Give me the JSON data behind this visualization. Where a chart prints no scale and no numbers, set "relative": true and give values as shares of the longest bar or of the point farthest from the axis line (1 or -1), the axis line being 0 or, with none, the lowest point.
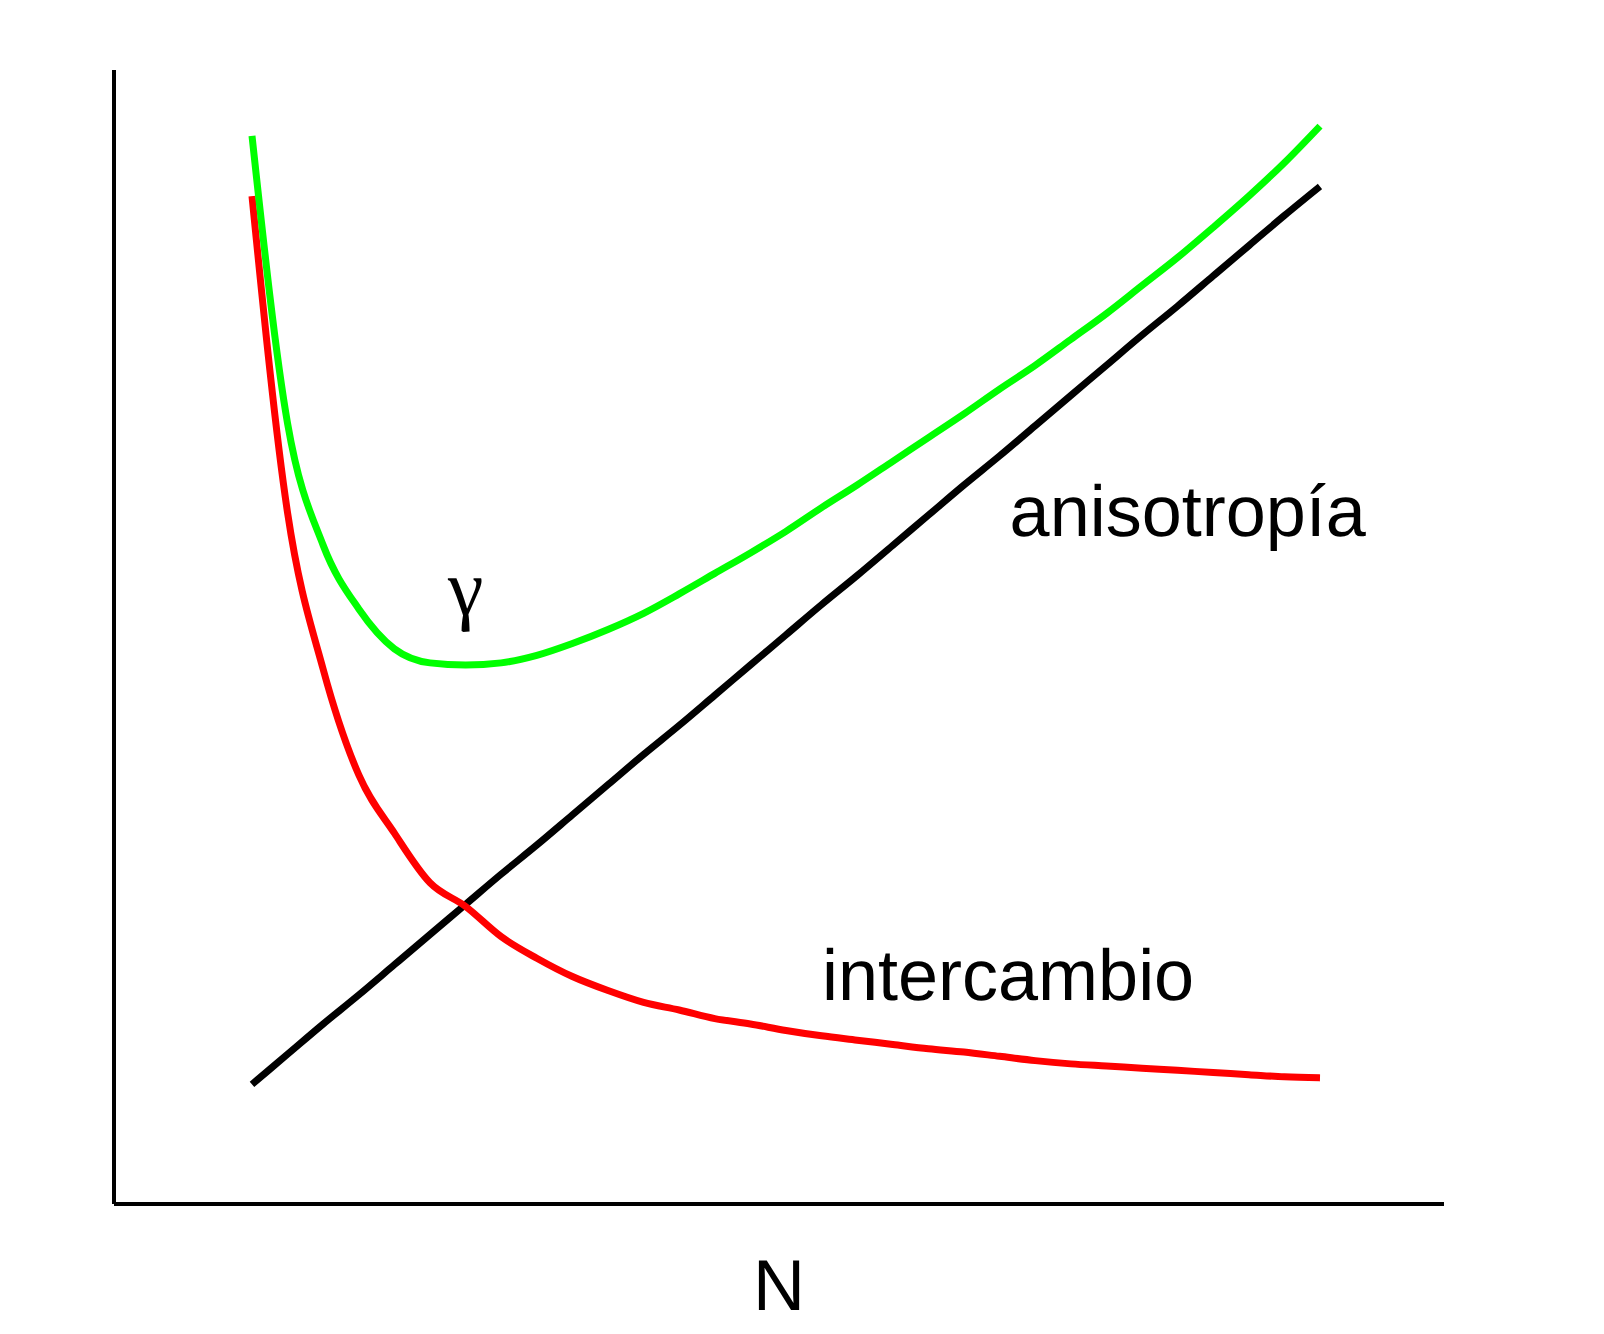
{
  "chart_data": {
    "type": "line",
    "relative": true,
    "xlabel": "N",
    "categories": [
      null,
      null,
      null,
      null,
      null,
      null,
      null,
      null,
      null,
      null,
      null,
      null,
      null,
      null,
      null,
      null,
      null,
      null,
      null,
      null,
      null,
      null,
      null,
      null,
      null,
      null,
      null,
      null,
      null,
      null,
      null
    ],
    "series": [
      {
        "name": "anisotropía",
        "color": "#000000",
        "values": [
          0.111,
          0.139,
          0.167,
          0.194,
          0.222,
          0.25,
          0.278,
          0.306,
          0.333,
          0.361,
          0.389,
          0.417,
          0.444,
          0.472,
          0.5,
          0.528,
          0.556,
          0.583,
          0.611,
          0.639,
          0.667,
          0.694,
          0.722,
          0.75,
          0.778,
          0.806,
          0.833,
          0.861,
          0.889,
          0.917,
          0.944
        ]
      },
      {
        "name": "intercambio",
        "color": "#ff0000",
        "values": [
          0.935,
          0.641,
          0.496,
          0.398,
          0.344,
          0.298,
          0.276,
          0.248,
          0.228,
          0.211,
          0.198,
          0.187,
          0.18,
          0.172,
          0.167,
          0.161,
          0.156,
          0.152,
          0.148,
          0.144,
          0.141,
          0.137,
          0.133,
          0.13,
          0.128,
          0.126,
          0.124,
          0.122,
          0.12,
          0.118,
          0.117
        ]
      },
      {
        "name": "γ",
        "color": "#00ff00",
        "values": [
          0.991,
          0.724,
          0.611,
          0.552,
          0.515,
          0.502,
          0.5,
          0.502,
          0.509,
          0.52,
          0.533,
          0.548,
          0.566,
          0.585,
          0.604,
          0.624,
          0.646,
          0.667,
          0.689,
          0.711,
          0.733,
          0.756,
          0.778,
          0.802,
          0.826,
          0.852,
          0.878,
          0.906,
          0.935,
          0.966,
          1
        ]
      }
    ],
    "grid": false,
    "legend": false,
    "marker": "none",
    "line_style": "solid"
  }
}
